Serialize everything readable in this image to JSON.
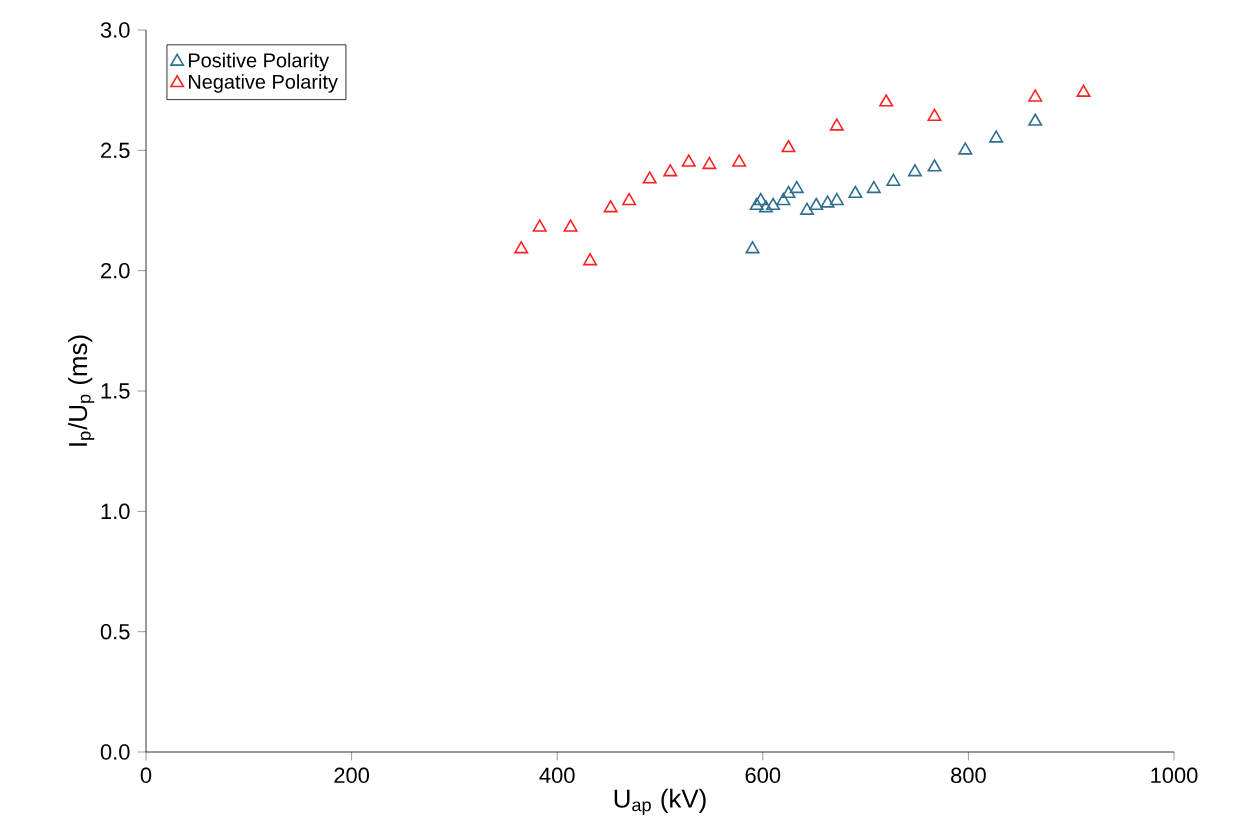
{
  "chart_data": {
    "type": "scatter",
    "xlabel": "U$_{ap}$ (kV)",
    "ylabel": "I$_{p}$/U$_{p}$ (ms)",
    "xlim": [
      0,
      1000
    ],
    "xticks": [
      0,
      200,
      400,
      600,
      800,
      1000
    ],
    "ylim": [
      0,
      3
    ],
    "yticks": [
      {
        "value": 0,
        "label": "0.0"
      },
      {
        "value": 0.5,
        "label": "0.5"
      },
      {
        "value": 1,
        "label": "1.0"
      },
      {
        "value": 1.5,
        "label": "1.5"
      },
      {
        "value": 2,
        "label": "2.0"
      },
      {
        "value": 2.5,
        "label": "2.5"
      },
      {
        "value": 3,
        "label": "3.0"
      }
    ],
    "marker": "triangle",
    "legend": "top left",
    "grid": false,
    "series": [
      {
        "name": "Positive Polarity",
        "color": "#2e6e8e",
        "x": [
          590,
          594,
          598,
          603,
          610,
          620,
          625,
          633,
          643,
          652,
          663,
          672,
          690,
          708,
          727,
          748,
          767,
          797,
          827,
          865
        ],
        "values": [
          2.09,
          2.27,
          2.29,
          2.26,
          2.27,
          2.29,
          2.32,
          2.34,
          2.25,
          2.27,
          2.28,
          2.29,
          2.32,
          2.34,
          2.37,
          2.41,
          2.43,
          2.5,
          2.55,
          2.62
        ]
      },
      {
        "name": "Negative Polarity",
        "color": "#ff2020",
        "x": [
          365,
          383,
          413,
          432,
          452,
          470,
          490,
          510,
          528,
          548,
          577,
          625,
          672,
          720,
          767,
          865,
          912
        ],
        "values": [
          2.09,
          2.18,
          2.18,
          2.04,
          2.26,
          2.29,
          2.38,
          2.41,
          2.45,
          2.44,
          2.45,
          2.51,
          2.6,
          2.7,
          2.64,
          2.72,
          2.74
        ]
      }
    ]
  }
}
